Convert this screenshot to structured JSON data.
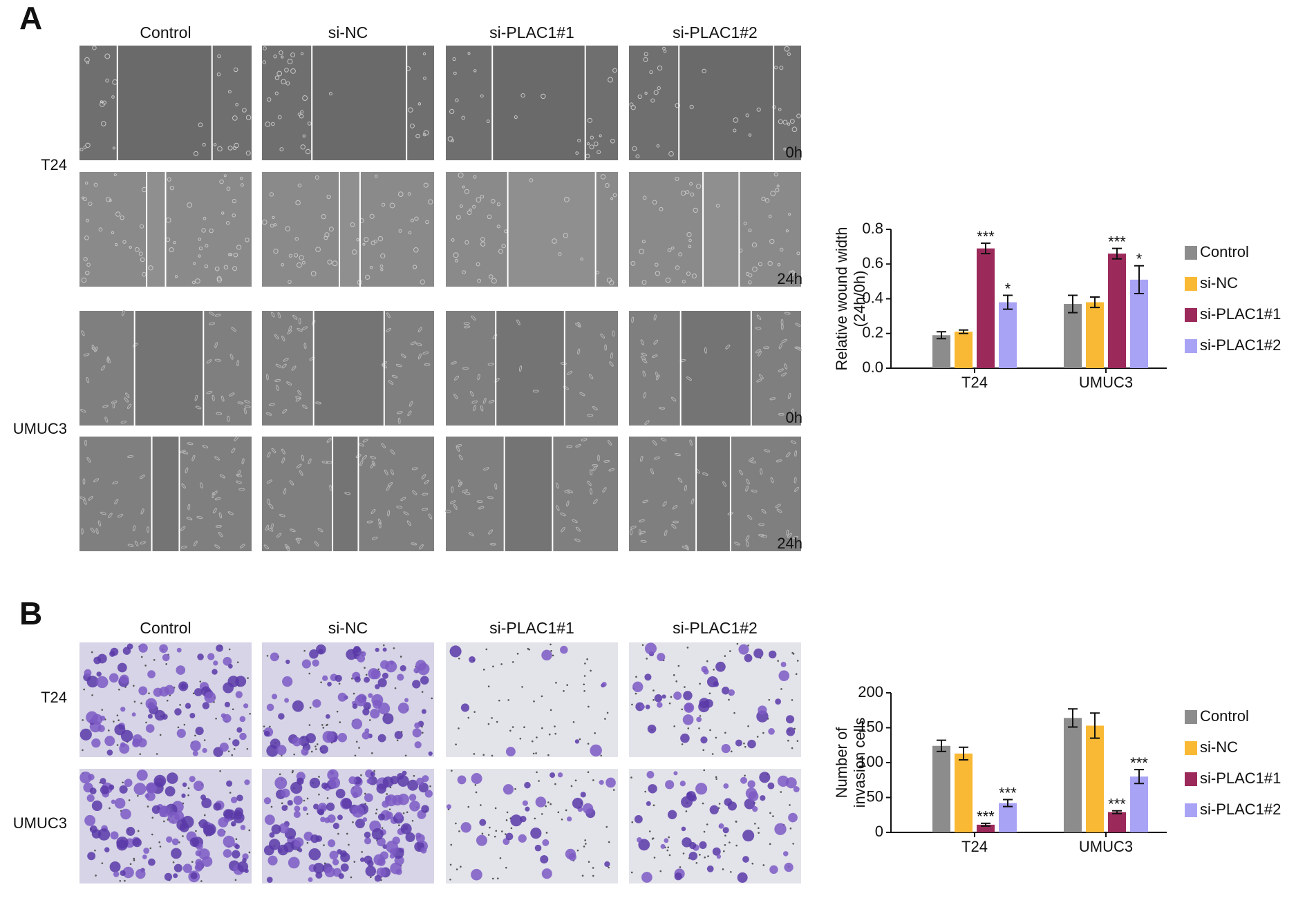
{
  "panels": [
    {
      "label": "A",
      "columns": [
        "Control",
        "si-NC",
        "si-PLAC1#1",
        "si-PLAC1#2"
      ],
      "rows": [
        "T24",
        "UMUC3"
      ],
      "times": [
        "0h",
        "24h"
      ]
    },
    {
      "label": "B",
      "columns": [
        "Control",
        "si-NC",
        "si-PLAC1#1",
        "si-PLAC1#2"
      ],
      "rows": [
        "T24",
        "UMUC3"
      ]
    }
  ],
  "chart_data": [
    {
      "type": "bar",
      "ylabel": [
        "Relative wound width",
        "(24h/0h)"
      ],
      "categories": [
        "T24",
        "UMUC3"
      ],
      "ylim": [
        0,
        0.8
      ],
      "yticks": [
        {
          "value": 0,
          "label": "0.0"
        },
        0.2,
        0.4,
        0.6,
        0.8
      ],
      "series": [
        {
          "name": "Control",
          "color": "#8c8c8c",
          "values": [
            0.19,
            0.37
          ],
          "errors": [
            0.02,
            0.05
          ],
          "significance": [
            null,
            null
          ]
        },
        {
          "name": "si-NC",
          "color": "#f9b934",
          "values": [
            0.21,
            0.38
          ],
          "errors": [
            0.01,
            0.03
          ],
          "significance": [
            null,
            null
          ]
        },
        {
          "name": "si-PLAC1#1",
          "color": "#9b2a5a",
          "values": [
            0.69,
            0.66
          ],
          "errors": [
            0.03,
            0.03
          ],
          "significance": [
            "***",
            "***"
          ]
        },
        {
          "name": "si-PLAC1#2",
          "color": "#a9a3f5",
          "values": [
            0.38,
            0.51
          ],
          "errors": [
            0.04,
            0.08
          ],
          "significance": [
            "*",
            "*"
          ]
        }
      ]
    },
    {
      "type": "bar",
      "ylabel": [
        "Number of",
        "invasion cells"
      ],
      "categories": [
        "T24",
        "UMUC3"
      ],
      "ylim": [
        0,
        200
      ],
      "yticks": [
        0,
        50,
        100,
        150,
        200
      ],
      "series": [
        {
          "name": "Control",
          "color": "#8c8c8c",
          "values": [
            124,
            164
          ],
          "errors": [
            8,
            13
          ],
          "significance": [
            null,
            null
          ]
        },
        {
          "name": "si-NC",
          "color": "#f9b934",
          "values": [
            113,
            153
          ],
          "errors": [
            9,
            18
          ],
          "significance": [
            null,
            null
          ]
        },
        {
          "name": "si-PLAC1#1",
          "color": "#9b2a5a",
          "values": [
            11,
            29
          ],
          "errors": [
            2,
            2
          ],
          "significance": [
            "***",
            "***"
          ]
        },
        {
          "name": "si-PLAC1#2",
          "color": "#a9a3f5",
          "values": [
            42,
            80
          ],
          "errors": [
            5,
            10
          ],
          "significance": [
            "***",
            "***"
          ]
        }
      ]
    }
  ]
}
